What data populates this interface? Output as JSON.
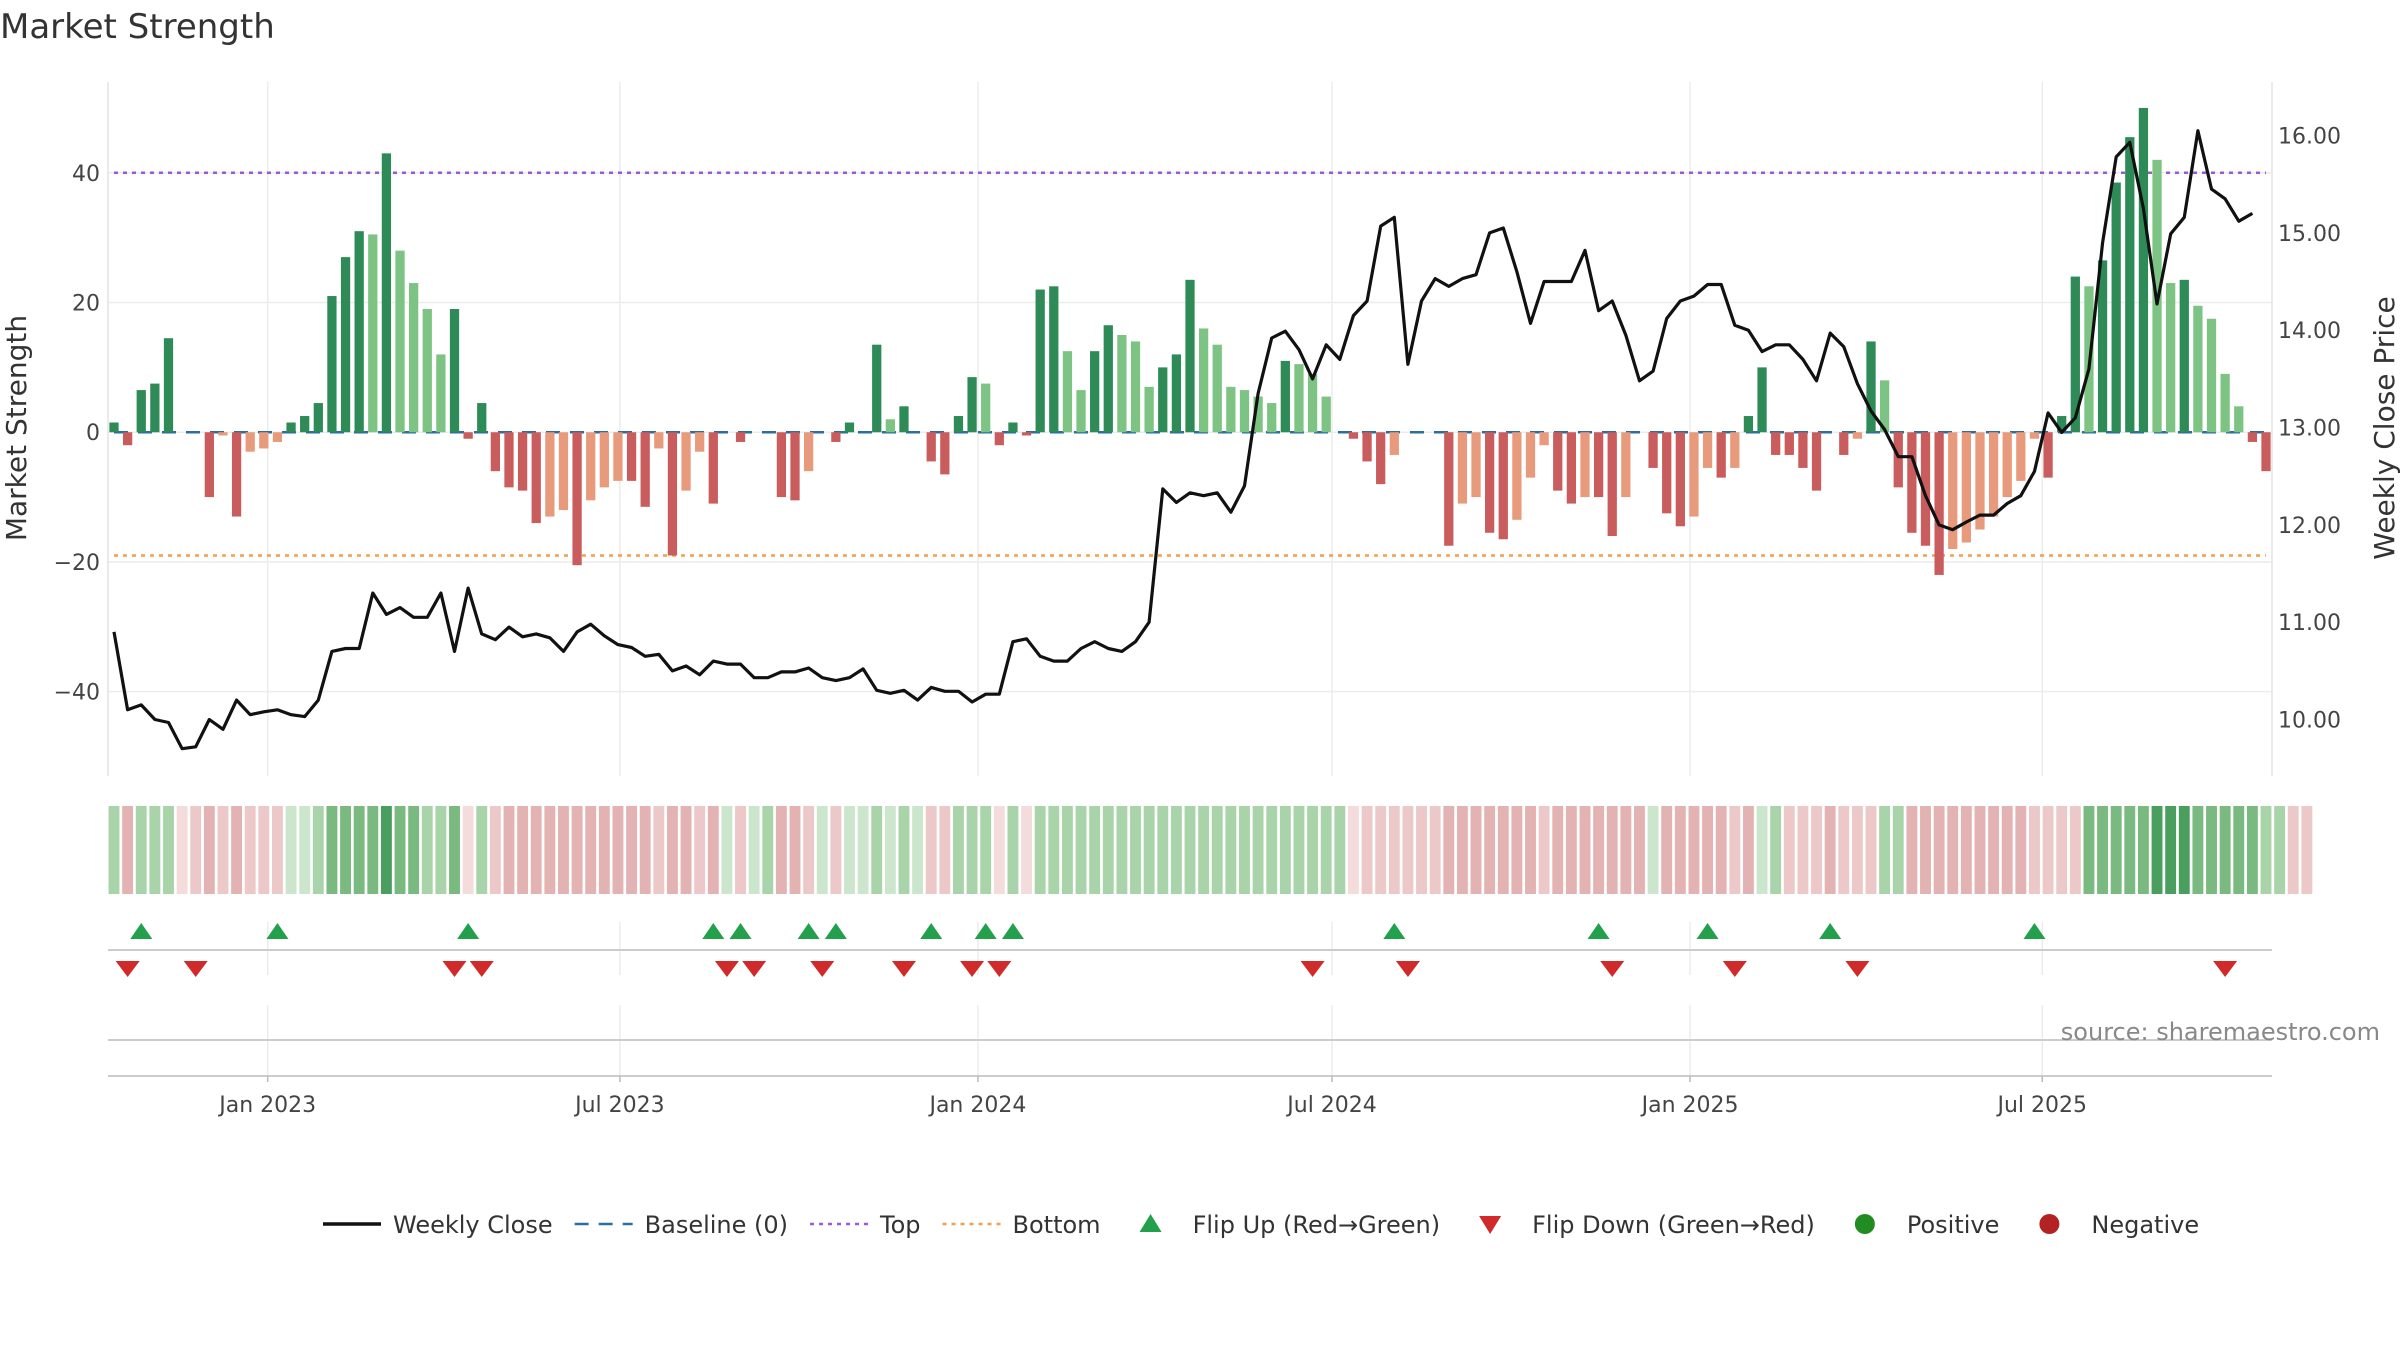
{
  "chart_data": {
    "type": "bar+line",
    "title": "Market Strength",
    "ylabel_left": "Market Strength",
    "ylabel_right": "Weekly Close Price",
    "source": "source: sharemaestro.com",
    "x_start": "2022-10-14",
    "x_ticks": [
      "Jan 2023",
      "Jul 2023",
      "Jan 2024",
      "Jul 2024",
      "Jan 2025",
      "Jul 2025"
    ],
    "ylim_left": [
      -53,
      54
    ],
    "yticks_left": [
      40,
      20,
      0,
      -20,
      -40
    ],
    "ylim_right": [
      9.42,
      16.55
    ],
    "yticks_right": [
      "16.00",
      "15.00",
      "14.00",
      "13.00",
      "12.00",
      "11.00",
      "10.00"
    ],
    "top_line": 40,
    "bottom_line": -19,
    "strength": [
      1.5,
      -2,
      6.5,
      7.5,
      14.5,
      0,
      0,
      -10,
      -0.5,
      -13,
      -3,
      -2.5,
      -1.5,
      1.5,
      2.5,
      4.5,
      21,
      27,
      31,
      30.5,
      43,
      28,
      23,
      19,
      12,
      19,
      -1,
      4.5,
      -6,
      -8.5,
      -9,
      -14,
      -13,
      -12,
      -20.5,
      -10.5,
      -8.5,
      -7.5,
      -7.5,
      -11.5,
      -2.5,
      -19,
      -9,
      -3,
      -11,
      0,
      -1.5,
      0,
      0,
      -10,
      -10.5,
      -6,
      0,
      -1.5,
      1.5,
      0,
      13.5,
      2,
      4,
      0,
      -4.5,
      -6.5,
      2.5,
      8.5,
      7.5,
      -2,
      1.5,
      -0.5,
      22,
      22.5,
      12.5,
      6.5,
      12.5,
      16.5,
      15,
      14,
      7,
      10,
      12,
      23.5,
      16,
      13.5,
      7,
      6.5,
      5.5,
      4.5,
      11,
      10.5,
      9,
      5.5,
      0,
      -1,
      -4.5,
      -8,
      -3.5,
      0,
      0,
      0,
      -17.5,
      -11,
      -10,
      -15.5,
      -16.5,
      -13.5,
      -7,
      -2,
      -9,
      -11,
      -10,
      -10,
      -16,
      -10,
      0,
      -5.5,
      -12.5,
      -14.5,
      -13,
      -5.5,
      -7,
      -5.5,
      2.5,
      10,
      -3.5,
      -3.5,
      -5.5,
      -9,
      0,
      -3.5,
      -1,
      14,
      8,
      -8.5,
      -15.5,
      -17.5,
      -22,
      -18,
      -17,
      -15,
      -13,
      -10,
      -7.5,
      -1,
      -7,
      2.5,
      24,
      22.5,
      26.5,
      38.5,
      45.5,
      50,
      42,
      23,
      23.5,
      19.5,
      17.5,
      9,
      4,
      -1.5,
      -6
    ],
    "weekly_close": [
      10.9,
      10.1,
      10.15,
      10.0,
      9.97,
      9.7,
      9.72,
      10.0,
      9.9,
      10.2,
      10.05,
      10.08,
      10.1,
      10.05,
      10.03,
      10.2,
      10.7,
      10.73,
      10.73,
      11.3,
      11.08,
      11.15,
      11.05,
      11.05,
      11.3,
      10.7,
      11.35,
      10.88,
      10.82,
      10.95,
      10.85,
      10.88,
      10.84,
      10.7,
      10.9,
      10.98,
      10.86,
      10.77,
      10.74,
      10.65,
      10.67,
      10.5,
      10.55,
      10.46,
      10.6,
      10.57,
      10.57,
      10.43,
      10.43,
      10.49,
      10.49,
      10.53,
      10.43,
      10.4,
      10.43,
      10.52,
      10.3,
      10.27,
      10.3,
      10.2,
      10.33,
      10.29,
      10.29,
      10.18,
      10.26,
      10.26,
      10.8,
      10.83,
      10.65,
      10.6,
      10.6,
      10.73,
      10.8,
      10.73,
      10.7,
      10.8,
      11.0,
      12.37,
      12.23,
      12.33,
      12.3,
      12.33,
      12.13,
      12.4,
      13.35,
      13.92,
      13.99,
      13.8,
      13.5,
      13.85,
      13.7,
      14.15,
      14.3,
      15.07,
      15.16,
      13.65,
      14.3,
      14.53,
      14.45,
      14.53,
      14.57,
      15.0,
      15.05,
      14.6,
      14.07,
      14.5,
      14.5,
      14.5,
      14.82,
      14.2,
      14.3,
      13.95,
      13.48,
      13.58,
      14.12,
      14.3,
      14.35,
      14.47,
      14.47,
      14.05,
      14.0,
      13.78,
      13.85,
      13.85,
      13.7,
      13.48,
      13.97,
      13.83,
      13.45,
      13.17,
      12.98,
      12.7,
      12.7,
      12.3,
      12.0,
      11.95,
      12.03,
      12.1,
      12.1,
      12.22,
      12.3,
      12.55,
      13.15,
      12.95,
      13.1,
      13.6,
      14.9,
      15.78,
      15.93,
      15.25,
      14.27,
      14.99,
      15.16,
      16.05,
      15.45,
      15.35,
      15.12,
      15.2
    ],
    "heat_colors": {
      "dg": "#4a9e5e",
      "mg": "#7ab97f",
      "lg": "#a9d4aa",
      "xg": "#cce6cd",
      "dr": "#d99a9a",
      "mr": "#e3b3b3",
      "lr": "#ecc8c8",
      "xr": "#f4dcdc"
    },
    "heat_strip": [
      "lg",
      "mr",
      "lg",
      "lg",
      "lg",
      "xr",
      "lr",
      "mr",
      "lr",
      "mr",
      "lr",
      "lr",
      "lr",
      "xg",
      "xg",
      "lg",
      "mg",
      "mg",
      "mg",
      "mg",
      "dg",
      "mg",
      "mg",
      "lg",
      "lg",
      "mg",
      "xr",
      "lg",
      "lr",
      "mr",
      "mr",
      "mr",
      "mr",
      "mr",
      "mr",
      "mr",
      "mr",
      "mr",
      "mr",
      "mr",
      "lr",
      "mr",
      "mr",
      "lr",
      "mr",
      "xg",
      "lr",
      "xg",
      "lg",
      "mr",
      "mr",
      "lr",
      "xg",
      "lr",
      "xg",
      "xg",
      "lg",
      "xg",
      "lg",
      "xg",
      "lr",
      "lr",
      "lg",
      "lg",
      "lg",
      "xr",
      "lg",
      "xr",
      "lg",
      "lg",
      "lg",
      "lg",
      "lg",
      "lg",
      "lg",
      "lg",
      "lg",
      "lg",
      "lg",
      "lg",
      "lg",
      "lg",
      "lg",
      "lg",
      "lg",
      "lg",
      "lg",
      "lg",
      "lg",
      "lg",
      "lg",
      "xr",
      "lr",
      "lr",
      "lr",
      "lr",
      "lr",
      "lr",
      "mr",
      "mr",
      "mr",
      "mr",
      "mr",
      "mr",
      "mr",
      "lr",
      "mr",
      "mr",
      "mr",
      "mr",
      "mr",
      "mr",
      "mr",
      "xg",
      "mr",
      "mr",
      "mr",
      "mr",
      "mr",
      "lr",
      "mr",
      "xg",
      "lg",
      "lr",
      "lr",
      "lr",
      "mr",
      "lr",
      "lr",
      "lr",
      "lg",
      "lg",
      "mr",
      "mr",
      "mr",
      "mr",
      "mr",
      "mr",
      "mr",
      "mr",
      "mr",
      "lr",
      "lr",
      "lr",
      "lr",
      "mg",
      "mg",
      "mg",
      "mg",
      "mg",
      "dg",
      "dg",
      "dg",
      "mg",
      "mg",
      "mg",
      "mg",
      "mg",
      "lg",
      "lg",
      "lr",
      "lr"
    ],
    "flip_up_weeks": [
      2,
      12,
      26,
      44,
      46,
      51,
      53,
      60,
      64,
      66,
      94,
      109,
      117,
      126,
      141
    ],
    "flip_down_weeks": [
      1,
      6,
      25,
      27,
      45,
      47,
      52,
      58,
      63,
      65,
      88,
      95,
      110,
      119,
      128,
      155
    ],
    "colors": {
      "pos_dark": "#2e8b57",
      "pos_light": "#7dc383",
      "neg_dark": "#c95c5c",
      "neg_light": "#e89a7c",
      "line": "#111111",
      "baseline": "#2b6f9e",
      "top": "#9b59d0",
      "bottom": "#f0a050",
      "flip_up": "#22a04b",
      "flip_down": "#d12a2a",
      "positive": "#228b22",
      "negative": "#b22222"
    },
    "legend": [
      {
        "kind": "line",
        "label": "Weekly Close"
      },
      {
        "kind": "dash",
        "label": "Baseline (0)"
      },
      {
        "kind": "dot-top",
        "label": "Top"
      },
      {
        "kind": "dot-bottom",
        "label": "Bottom"
      },
      {
        "kind": "tri-up",
        "label": "Flip Up (Red→Green)"
      },
      {
        "kind": "tri-down",
        "label": "Flip Down (Green→Red)"
      },
      {
        "kind": "circle-pos",
        "label": "Positive"
      },
      {
        "kind": "circle-neg",
        "label": "Negative"
      }
    ]
  }
}
